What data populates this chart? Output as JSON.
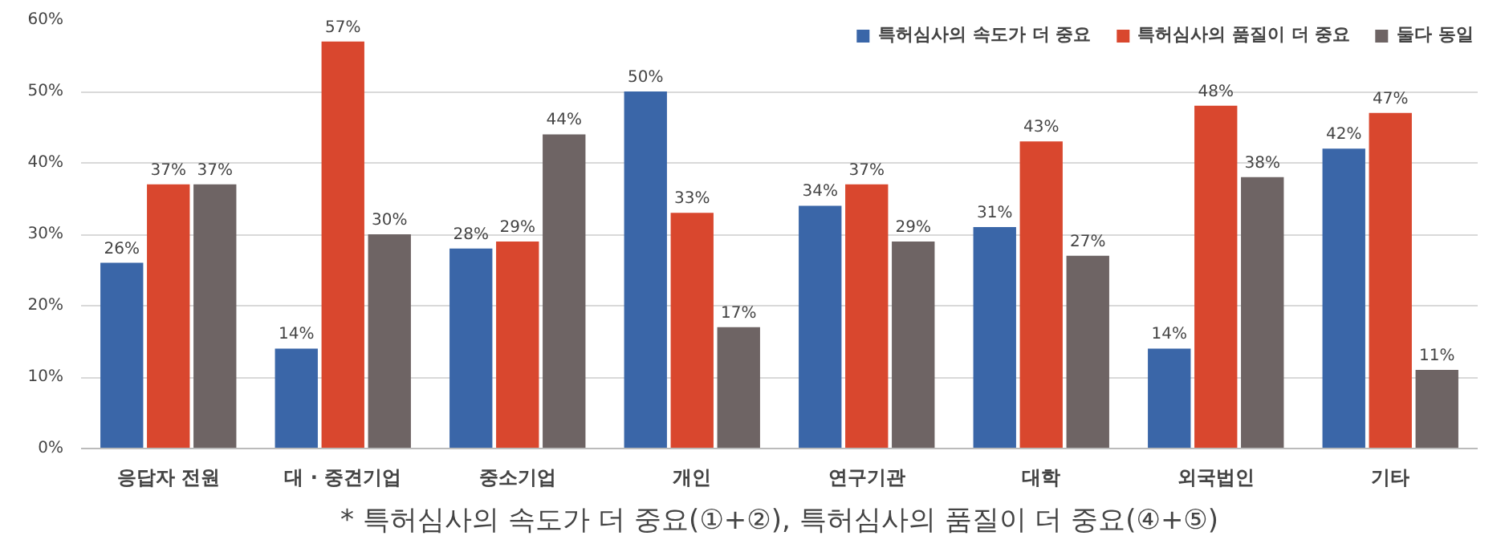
{
  "chart_data": {
    "type": "bar",
    "categories": [
      "응답자 전원",
      "대 · 중견기업",
      "중소기업",
      "개인",
      "연구기관",
      "대학",
      "외국법인",
      "기타"
    ],
    "series": [
      {
        "name": "특허심사의 속도가 더 중요",
        "color": "#3a66a8",
        "values": [
          26,
          14,
          28,
          50,
          34,
          31,
          14,
          42
        ],
        "value_labels": [
          "26%",
          "14%",
          "28%",
          "50%",
          "34%",
          "31%",
          "14%",
          "42%"
        ]
      },
      {
        "name": "특허심사의 품질이 더 중요",
        "color": "#d9472e",
        "values": [
          37,
          57,
          29,
          33,
          37,
          43,
          48,
          47
        ],
        "value_labels": [
          "37%",
          "57%",
          "29%",
          "33%",
          "37%",
          "43%",
          "48%",
          "47%"
        ]
      },
      {
        "name": "둘다 동일",
        "color": "#6e6464",
        "values": [
          37,
          30,
          44,
          17,
          29,
          27,
          38,
          11
        ],
        "value_labels": [
          "37%",
          "30%",
          "44%",
          "17%",
          "29%",
          "27%",
          "38%",
          "11%"
        ]
      }
    ],
    "ylim": [
      0,
      60
    ],
    "yticks": [
      {
        "value": 0,
        "label": "0%"
      },
      {
        "value": 10,
        "label": "10%"
      },
      {
        "value": 20,
        "label": "20%"
      },
      {
        "value": 30,
        "label": "30%"
      },
      {
        "value": 40,
        "label": "40%"
      },
      {
        "value": 50,
        "label": "50%"
      },
      {
        "value": 60,
        "label": "60%"
      }
    ],
    "grid": "y",
    "legend": "top right",
    "annotations": [
      "* 특허심사의 속도가 더 중요(①+②), 특허심사의 품질이 더 중요(④+⑤)"
    ]
  }
}
